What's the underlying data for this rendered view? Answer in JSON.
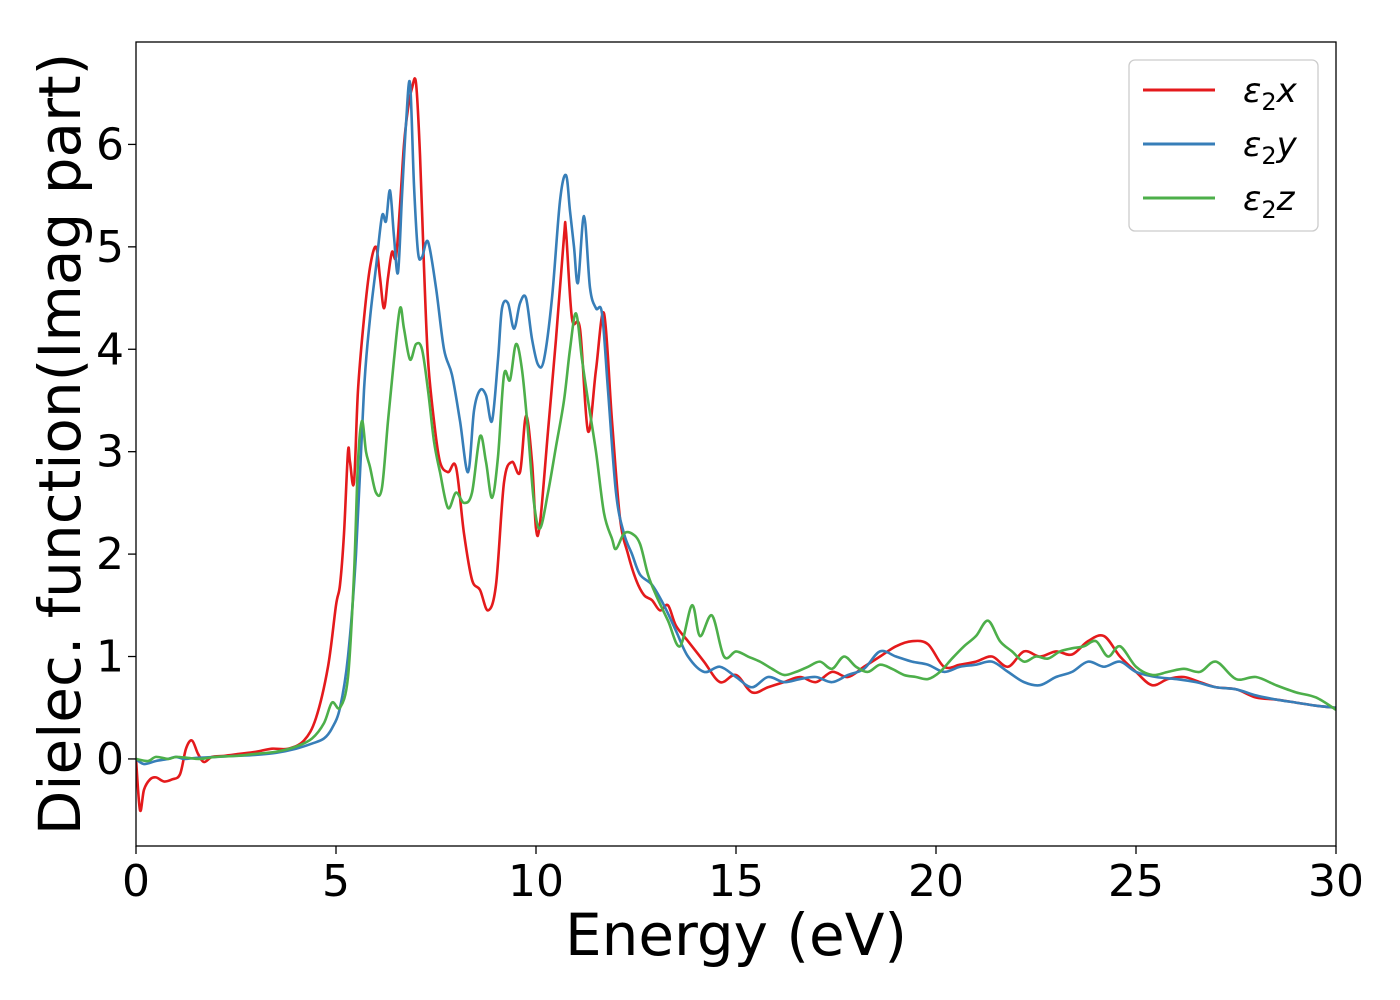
{
  "chart_data": {
    "type": "line",
    "title": "",
    "xlabel": "Energy (eV)",
    "ylabel": "Dielec. function(Imag part)",
    "xlim": [
      0,
      30
    ],
    "ylim": [
      -0.85,
      7.0
    ],
    "xticks": [
      0,
      5,
      10,
      15,
      20,
      25,
      30
    ],
    "yticks": [
      0,
      1,
      2,
      3,
      4,
      5,
      6
    ],
    "grid": false,
    "legend": "top-right",
    "series": [
      {
        "name": "ε2x",
        "legend_main": "ε",
        "legend_sub": "2",
        "legend_tail": "x",
        "color": "#e41a1c",
        "x": [
          0,
          0.1,
          0.2,
          0.35,
          0.5,
          0.7,
          0.9,
          1.1,
          1.25,
          1.4,
          1.55,
          1.7,
          1.9,
          2.2,
          2.6,
          3.0,
          3.4,
          3.8,
          4.2,
          4.5,
          4.8,
          5.0,
          5.1,
          5.2,
          5.3,
          5.35,
          5.45,
          5.55,
          5.7,
          5.85,
          6.0,
          6.1,
          6.2,
          6.3,
          6.4,
          6.5,
          6.6,
          6.7,
          6.8,
          6.9,
          7.0,
          7.1,
          7.2,
          7.3,
          7.45,
          7.6,
          7.8,
          8.0,
          8.2,
          8.4,
          8.6,
          8.8,
          9.0,
          9.2,
          9.4,
          9.6,
          9.75,
          9.9,
          10.0,
          10.1,
          10.3,
          10.5,
          10.7,
          10.75,
          10.9,
          11.1,
          11.3,
          11.5,
          11.7,
          11.9,
          12.1,
          12.3,
          12.5,
          12.7,
          12.9,
          13.1,
          13.3,
          13.5,
          13.8,
          14.2,
          14.6,
          15.0,
          15.4,
          15.8,
          16.2,
          16.6,
          17.0,
          17.4,
          17.8,
          18.2,
          18.6,
          19.0,
          19.4,
          19.8,
          20.2,
          20.6,
          21.0,
          21.4,
          21.8,
          22.2,
          22.6,
          23.0,
          23.4,
          23.8,
          24.2,
          24.6,
          25.0,
          25.4,
          25.8,
          26.2,
          26.6,
          27.0,
          27.5,
          28.0,
          28.5,
          29.0,
          29.5,
          30.0
        ],
        "y": [
          0,
          -0.5,
          -0.3,
          -0.2,
          -0.18,
          -0.22,
          -0.2,
          -0.15,
          0.1,
          0.18,
          0.05,
          -0.03,
          0.02,
          0.03,
          0.05,
          0.07,
          0.1,
          0.1,
          0.18,
          0.4,
          0.9,
          1.5,
          1.7,
          2.2,
          3.0,
          2.9,
          2.7,
          3.6,
          4.3,
          4.8,
          5.0,
          4.7,
          4.4,
          4.7,
          4.95,
          4.9,
          5.4,
          6.0,
          6.35,
          6.55,
          6.6,
          5.9,
          4.8,
          3.9,
          3.3,
          2.9,
          2.8,
          2.85,
          2.2,
          1.75,
          1.65,
          1.45,
          1.7,
          2.7,
          2.9,
          2.8,
          3.35,
          2.9,
          2.25,
          2.3,
          3.2,
          4.1,
          5.1,
          5.15,
          4.3,
          4.2,
          3.2,
          3.8,
          4.35,
          3.3,
          2.35,
          2.0,
          1.75,
          1.6,
          1.55,
          1.45,
          1.5,
          1.3,
          1.15,
          0.95,
          0.75,
          0.82,
          0.65,
          0.7,
          0.75,
          0.8,
          0.75,
          0.85,
          0.8,
          0.9,
          1.0,
          1.1,
          1.15,
          1.12,
          0.9,
          0.92,
          0.95,
          1.0,
          0.9,
          1.05,
          1.0,
          1.05,
          1.02,
          1.15,
          1.2,
          1.0,
          0.85,
          0.72,
          0.78,
          0.8,
          0.75,
          0.7,
          0.68,
          0.6,
          0.58,
          0.55,
          0.52,
          0.5
        ]
      },
      {
        "name": "ε2y",
        "legend_main": "ε",
        "legend_sub": "2",
        "legend_tail": "y",
        "color": "#377eb8",
        "x": [
          0,
          0.2,
          0.5,
          0.8,
          1.0,
          1.2,
          1.5,
          2.0,
          2.5,
          3.0,
          3.5,
          4.0,
          4.4,
          4.7,
          4.9,
          5.1,
          5.3,
          5.5,
          5.7,
          5.85,
          6.0,
          6.15,
          6.25,
          6.35,
          6.45,
          6.55,
          6.65,
          6.75,
          6.85,
          6.95,
          7.05,
          7.15,
          7.3,
          7.5,
          7.7,
          7.9,
          8.1,
          8.3,
          8.45,
          8.6,
          8.75,
          8.9,
          9.05,
          9.15,
          9.3,
          9.45,
          9.6,
          9.75,
          9.9,
          10.05,
          10.2,
          10.4,
          10.6,
          10.75,
          10.85,
          10.95,
          11.05,
          11.2,
          11.35,
          11.5,
          11.65,
          11.8,
          12.0,
          12.2,
          12.4,
          12.6,
          12.9,
          13.2,
          13.5,
          13.8,
          14.2,
          14.6,
          15.0,
          15.4,
          15.8,
          16.2,
          16.6,
          17.0,
          17.4,
          17.8,
          18.2,
          18.6,
          19.0,
          19.4,
          19.8,
          20.2,
          20.6,
          21.0,
          21.4,
          21.8,
          22.2,
          22.6,
          23.0,
          23.4,
          23.8,
          24.2,
          24.6,
          25.0,
          25.5,
          26.0,
          26.5,
          27.0,
          27.5,
          28.0,
          28.5,
          29.0,
          29.5,
          30.0
        ],
        "y": [
          0,
          -0.05,
          -0.02,
          0.0,
          0.02,
          0.0,
          0.01,
          0.02,
          0.03,
          0.04,
          0.06,
          0.1,
          0.15,
          0.2,
          0.3,
          0.5,
          1.0,
          2.0,
          3.6,
          4.3,
          4.8,
          5.3,
          5.25,
          5.55,
          5.1,
          4.75,
          5.5,
          6.2,
          6.6,
          5.6,
          4.95,
          4.9,
          5.05,
          4.6,
          4.0,
          3.75,
          3.3,
          2.8,
          3.4,
          3.6,
          3.55,
          3.3,
          3.9,
          4.4,
          4.45,
          4.2,
          4.45,
          4.5,
          4.1,
          3.85,
          3.9,
          4.5,
          5.45,
          5.7,
          5.35,
          5.0,
          4.65,
          5.3,
          4.6,
          4.4,
          4.35,
          3.6,
          2.6,
          2.2,
          2.0,
          1.8,
          1.7,
          1.5,
          1.25,
          1.0,
          0.85,
          0.9,
          0.8,
          0.7,
          0.8,
          0.75,
          0.78,
          0.8,
          0.75,
          0.82,
          0.88,
          1.05,
          1.0,
          0.95,
          0.92,
          0.85,
          0.9,
          0.92,
          0.95,
          0.85,
          0.75,
          0.72,
          0.8,
          0.85,
          0.95,
          0.9,
          0.95,
          0.85,
          0.8,
          0.78,
          0.75,
          0.7,
          0.68,
          0.62,
          0.58,
          0.55,
          0.52,
          0.5
        ]
      },
      {
        "name": "ε2z",
        "legend_main": "ε",
        "legend_sub": "2",
        "legend_tail": "z",
        "color": "#4daf4a",
        "x": [
          0,
          0.3,
          0.5,
          0.8,
          1.0,
          1.3,
          1.6,
          2.0,
          2.5,
          3.0,
          3.5,
          4.0,
          4.4,
          4.7,
          4.9,
          5.1,
          5.3,
          5.45,
          5.55,
          5.65,
          5.75,
          5.85,
          6.0,
          6.15,
          6.3,
          6.45,
          6.6,
          6.7,
          6.85,
          7.0,
          7.15,
          7.3,
          7.45,
          7.6,
          7.8,
          8.0,
          8.2,
          8.4,
          8.6,
          8.75,
          8.9,
          9.05,
          9.2,
          9.35,
          9.5,
          9.65,
          9.8,
          9.95,
          10.1,
          10.3,
          10.5,
          10.7,
          10.85,
          11.0,
          11.15,
          11.3,
          11.5,
          11.7,
          11.9,
          12.0,
          12.2,
          12.4,
          12.6,
          12.8,
          13.0,
          13.3,
          13.6,
          13.9,
          14.1,
          14.4,
          14.7,
          15.0,
          15.3,
          15.6,
          15.9,
          16.2,
          16.5,
          16.8,
          17.1,
          17.4,
          17.7,
          18.0,
          18.3,
          18.6,
          18.9,
          19.2,
          19.5,
          19.8,
          20.1,
          20.4,
          20.7,
          21.0,
          21.3,
          21.6,
          21.9,
          22.2,
          22.5,
          22.8,
          23.1,
          23.4,
          23.7,
          24.0,
          24.3,
          24.6,
          25.0,
          25.4,
          25.8,
          26.2,
          26.6,
          27.0,
          27.5,
          28.0,
          28.5,
          29.0,
          29.5,
          30.0
        ],
        "y": [
          0,
          -0.02,
          0.02,
          0.0,
          0.02,
          0.01,
          0.0,
          0.02,
          0.03,
          0.05,
          0.07,
          0.12,
          0.2,
          0.35,
          0.55,
          0.5,
          0.8,
          1.8,
          2.9,
          3.3,
          3.0,
          2.85,
          2.6,
          2.65,
          3.3,
          3.9,
          4.4,
          4.2,
          3.9,
          4.05,
          4.0,
          3.6,
          3.1,
          2.8,
          2.45,
          2.6,
          2.5,
          2.6,
          3.15,
          2.9,
          2.55,
          2.95,
          3.75,
          3.7,
          4.05,
          3.8,
          3.2,
          2.5,
          2.25,
          2.6,
          3.05,
          3.5,
          4.0,
          4.35,
          3.9,
          3.5,
          3.0,
          2.4,
          2.15,
          2.05,
          2.2,
          2.2,
          2.1,
          1.8,
          1.6,
          1.35,
          1.1,
          1.5,
          1.2,
          1.4,
          1.0,
          1.05,
          1.0,
          0.95,
          0.88,
          0.82,
          0.85,
          0.9,
          0.95,
          0.88,
          1.0,
          0.9,
          0.85,
          0.92,
          0.88,
          0.82,
          0.8,
          0.78,
          0.85,
          0.98,
          1.1,
          1.2,
          1.35,
          1.15,
          1.05,
          0.95,
          1.0,
          0.98,
          1.05,
          1.08,
          1.1,
          1.15,
          1.0,
          1.1,
          0.9,
          0.82,
          0.85,
          0.88,
          0.85,
          0.95,
          0.78,
          0.8,
          0.72,
          0.65,
          0.6,
          0.48
        ]
      }
    ]
  }
}
